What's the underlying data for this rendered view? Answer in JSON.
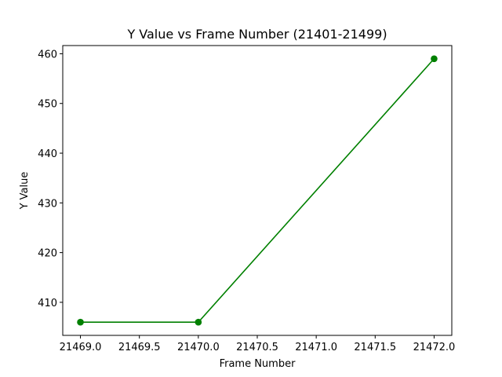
{
  "chart_data": {
    "type": "line",
    "title": "Y Value vs Frame Number (21401-21499)",
    "xlabel": "Frame Number",
    "ylabel": "Y Value",
    "xlim": [
      21468.85,
      21472.15
    ],
    "ylim": [
      403.35,
      461.65
    ],
    "x_ticks": [
      21469.0,
      21469.5,
      21470.0,
      21470.5,
      21471.0,
      21471.5,
      21472.0
    ],
    "x_tick_labels": [
      "21469.0",
      "21469.5",
      "21470.0",
      "21470.5",
      "21471.0",
      "21471.5",
      "21472.0"
    ],
    "y_ticks": [
      410,
      420,
      430,
      440,
      450,
      460
    ],
    "y_tick_labels": [
      "410",
      "420",
      "430",
      "440",
      "450",
      "460"
    ],
    "grid": false,
    "legend": "none",
    "series": [
      {
        "color": "#008000",
        "marker": "circle",
        "x": [
          21469,
          21470,
          21472
        ],
        "y": [
          406,
          406,
          459
        ]
      }
    ]
  }
}
